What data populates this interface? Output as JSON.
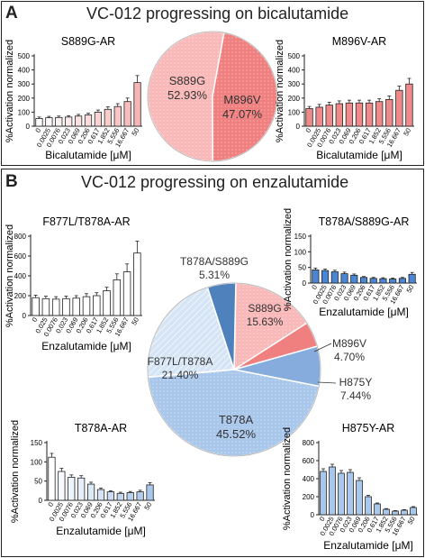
{
  "panel_a": {
    "letter": "A",
    "title": "VC-012 progressing on bicalutamide"
  },
  "panel_b": {
    "letter": "B",
    "title": "VC-012 progressing on enzalutamide"
  },
  "colors": {
    "s889g": "#f9b9b9",
    "m896v": "#f08080",
    "t878a": "#a9c7ea",
    "f877l_t878a": "#d6e5f5",
    "h875y": "#86acde",
    "t878a_s889g": "#4f81bd",
    "bar_white": "#ffffff",
    "bar_pink": "#f6b6b6",
    "bar_salmon": "#f08a8a",
    "bar_blue": "#4a86d4",
    "bar_lightblue": "#a9c7ea"
  },
  "chart_data": [
    {
      "type": "pie",
      "panel": "A",
      "slices": [
        {
          "name": "S889G",
          "value": 52.93,
          "label": "52.93%"
        },
        {
          "name": "M896V",
          "value": 47.07,
          "label": "47.07%"
        }
      ]
    },
    {
      "type": "bar",
      "panel": "A",
      "title": "S889G-AR",
      "xlabel": "Bicalutamide [μM]",
      "ylabel": "%Activation normalized",
      "ylim": [
        0,
        500
      ],
      "yticks": [
        0,
        100,
        200,
        300,
        400,
        500
      ],
      "categories": [
        "0",
        "0.0025",
        "0.0076",
        "0.023",
        "0.069",
        "0.206",
        "0.617",
        "1.852",
        "5.556",
        "16.667",
        "50"
      ],
      "values": [
        55,
        60,
        62,
        65,
        72,
        80,
        100,
        120,
        140,
        175,
        310
      ],
      "errors": [
        10,
        10,
        10,
        10,
        12,
        12,
        15,
        18,
        20,
        25,
        50
      ],
      "bar_color": "gradient-white-to-pink"
    },
    {
      "type": "bar",
      "panel": "A",
      "title": "M896V-AR",
      "xlabel": "Bicalutamide [μM]",
      "ylabel": "%Activation normalized",
      "ylim": [
        0,
        500
      ],
      "yticks": [
        0,
        100,
        200,
        300,
        400,
        500
      ],
      "categories": [
        "0",
        "0.0025",
        "0.0076",
        "0.023",
        "0.069",
        "0.206",
        "0.617",
        "1.852",
        "5.556",
        "16.667",
        "50"
      ],
      "values": [
        125,
        135,
        150,
        160,
        165,
        165,
        165,
        175,
        190,
        255,
        300
      ],
      "errors": [
        15,
        20,
        20,
        20,
        20,
        20,
        20,
        20,
        25,
        30,
        40
      ],
      "bar_color": "salmon"
    },
    {
      "type": "pie",
      "panel": "B",
      "slices": [
        {
          "name": "S889G",
          "value": 15.63,
          "label": "15.63%"
        },
        {
          "name": "M896V",
          "value": 4.7,
          "label": "4.70%"
        },
        {
          "name": "H875Y",
          "value": 7.44,
          "label": "7.44%"
        },
        {
          "name": "T878A",
          "value": 45.52,
          "label": "45.52%"
        },
        {
          "name": "F877L/T878A",
          "value": 21.4,
          "label": "21.40%"
        },
        {
          "name": "T878A/S889G",
          "value": 5.31,
          "label": "5.31%"
        }
      ]
    },
    {
      "type": "bar",
      "panel": "B",
      "title": "F877L/T878A-AR",
      "xlabel": "Enzalutamide [μM]",
      "ylabel": "%Activation normalized",
      "ylim": [
        0,
        800
      ],
      "yticks": [
        0,
        200,
        400,
        600,
        800
      ],
      "categories": [
        "0",
        "0.025",
        "0.0076",
        "0.023",
        "0.069",
        "0.206",
        "0.617",
        "1.852",
        "5.556",
        "16.667",
        "50"
      ],
      "values": [
        180,
        170,
        165,
        170,
        175,
        190,
        200,
        250,
        360,
        440,
        630
      ],
      "errors": [
        25,
        25,
        25,
        25,
        25,
        30,
        30,
        35,
        60,
        80,
        120
      ],
      "bar_color": "white"
    },
    {
      "type": "bar",
      "panel": "B",
      "title": "T878A/S889G-AR",
      "xlabel": "Enzalutamide [μM]",
      "ylabel": "%Activation normalized",
      "ylim": [
        0,
        150
      ],
      "yticks": [
        0,
        50,
        100,
        150
      ],
      "categories": [
        "0",
        "0.0025",
        "0.0076",
        "0.023",
        "0.069",
        "0.206",
        "0.617",
        "1.852",
        "5.556",
        "16.667",
        "50"
      ],
      "values": [
        42,
        40,
        36,
        30,
        25,
        18,
        15,
        14,
        13,
        15,
        28
      ],
      "errors": [
        6,
        5,
        5,
        5,
        4,
        3,
        3,
        3,
        3,
        3,
        6
      ],
      "bar_color": "blue"
    },
    {
      "type": "bar",
      "panel": "B",
      "title": "T878A-AR",
      "xlabel": "Enzalutamide [μM]",
      "ylabel": "%Activation normalized",
      "ylim": [
        0,
        150
      ],
      "yticks": [
        0,
        50,
        100,
        150
      ],
      "categories": [
        "0",
        "0.0025",
        "0.0076",
        "0.023",
        "0.069",
        "0.206",
        "0.617",
        "1.852",
        "5.556",
        "16.667",
        "50"
      ],
      "values": [
        112,
        75,
        60,
        58,
        42,
        28,
        22,
        18,
        20,
        22,
        40
      ],
      "errors": [
        10,
        8,
        6,
        6,
        5,
        4,
        3,
        3,
        3,
        4,
        6
      ],
      "bar_color": "gradient-white-to-lightblue"
    },
    {
      "type": "bar",
      "panel": "B",
      "title": "H875Y-AR",
      "xlabel": "Enzalutamide [μM]",
      "ylabel": "%Activation normalized",
      "ylim": [
        0,
        800
      ],
      "yticks": [
        0,
        200,
        400,
        600,
        800
      ],
      "categories": [
        "0",
        "0.0025",
        "0.0076",
        "0.023",
        "0.069",
        "0.206",
        "0.617",
        "1.852",
        "5.556",
        "16.667",
        "50"
      ],
      "values": [
        480,
        530,
        460,
        470,
        380,
        200,
        120,
        60,
        40,
        50,
        80
      ],
      "errors": [
        30,
        30,
        30,
        30,
        30,
        15,
        10,
        8,
        6,
        6,
        10
      ],
      "bar_color": "lightblue"
    }
  ]
}
